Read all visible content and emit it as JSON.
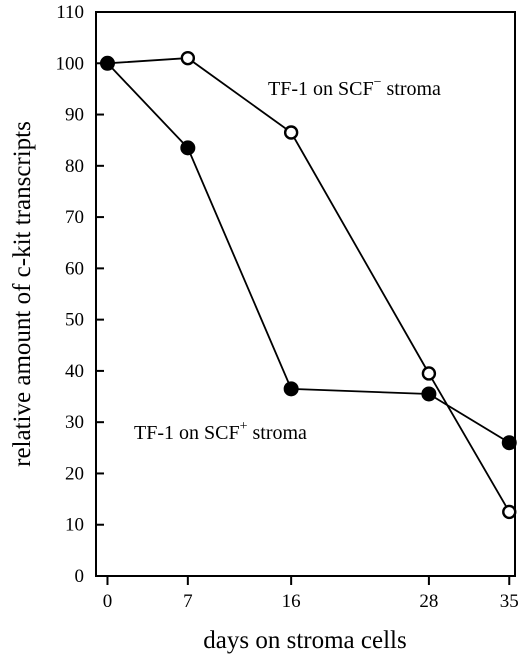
{
  "chart_data": {
    "type": "line",
    "title": "",
    "xlabel": "days on stroma cells",
    "ylabel": "relative amount of c-kit transcripts",
    "x": [
      0,
      7,
      16,
      28,
      35
    ],
    "x_tick_labels": [
      "0",
      "7",
      "16",
      "28",
      "35"
    ],
    "xlim": [
      -1,
      35.5
    ],
    "ylim": [
      0,
      110
    ],
    "y_ticks": [
      0,
      10,
      20,
      30,
      40,
      50,
      60,
      70,
      80,
      90,
      100,
      110
    ],
    "grid": false,
    "legend": "none",
    "series": [
      {
        "marker": "open-circle",
        "values": [
          100,
          101,
          86.5,
          39.5,
          12.5
        ]
      },
      {
        "marker": "filled-circle",
        "values": [
          100,
          83.5,
          36.5,
          35.5,
          26
        ]
      }
    ],
    "annotations": [
      {
        "pre": "TF-1 on SCF",
        "sup": "−",
        "post": " stroma"
      },
      {
        "pre": "TF-1 on SCF",
        "sup": "+",
        "post": " stroma"
      }
    ]
  }
}
